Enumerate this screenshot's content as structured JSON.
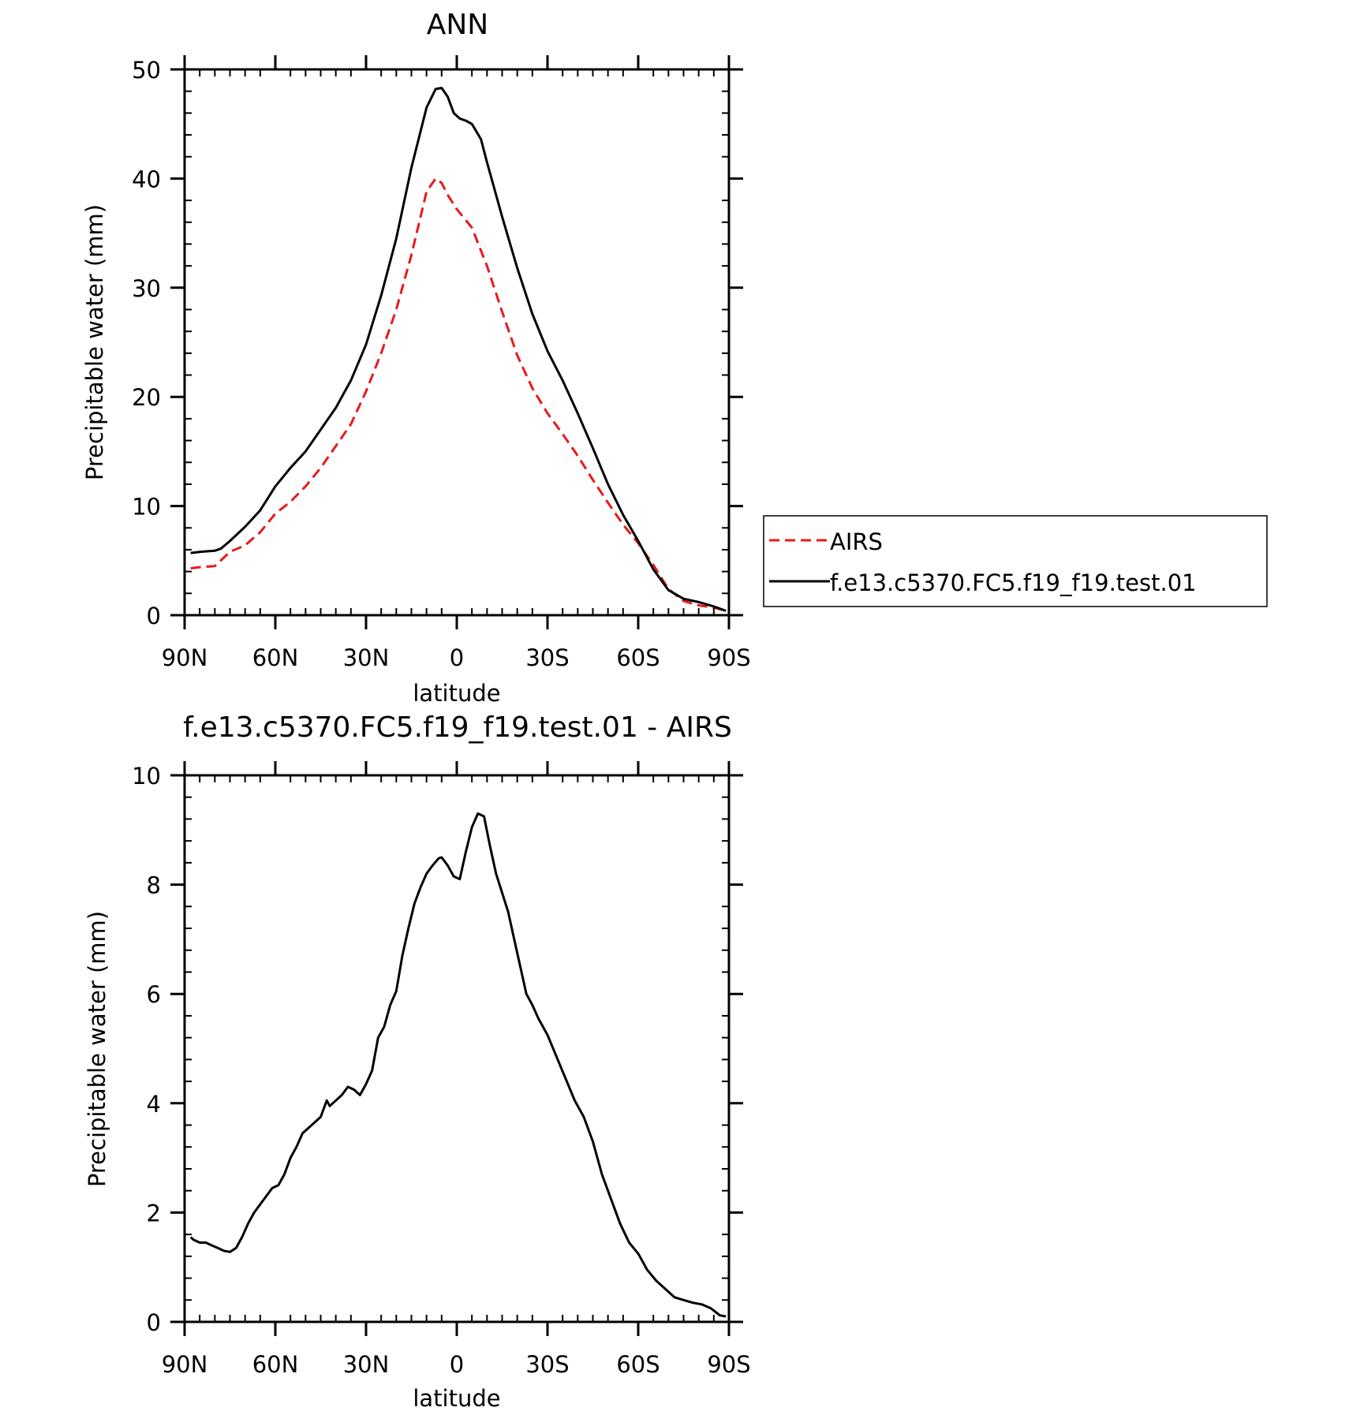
{
  "chart_data": [
    {
      "type": "line",
      "title": "ANN",
      "xlabel": "latitude",
      "ylabel": "Precipitable water (mm)",
      "xlim": [
        -90,
        90
      ],
      "ylim": [
        0,
        50
      ],
      "xticks": [
        -90,
        -60,
        -30,
        0,
        30,
        60,
        90
      ],
      "xtick_labels": [
        "90N",
        "60N",
        "30N",
        "0",
        "30S",
        "60S",
        "90S"
      ],
      "yticks": [
        0,
        10,
        20,
        30,
        40,
        50
      ],
      "ytick_labels": [
        "0",
        "10",
        "20",
        "30",
        "40",
        "50"
      ],
      "legend_position": "right",
      "grid": false,
      "series": [
        {
          "name": "AIRS",
          "color": "#e8191c",
          "dash": "dashed",
          "x": [
            -88,
            -85,
            -80,
            -75,
            -70,
            -65,
            -60,
            -55,
            -50,
            -45,
            -40,
            -35,
            -30,
            -25,
            -20,
            -15,
            -10,
            -7,
            -5,
            -3,
            0,
            5,
            10,
            15,
            20,
            25,
            30,
            35,
            40,
            45,
            50,
            55,
            60,
            65,
            70,
            75,
            80,
            85,
            89
          ],
          "y": [
            4.3,
            4.4,
            4.5,
            5.8,
            6.4,
            7.6,
            9.3,
            10.4,
            11.8,
            13.5,
            15.5,
            17.5,
            20.5,
            24.0,
            28.0,
            33.0,
            38.8,
            40.0,
            39.6,
            38.5,
            37.2,
            35.5,
            32.0,
            27.8,
            23.8,
            20.8,
            18.5,
            16.6,
            14.6,
            12.4,
            10.3,
            8.3,
            6.6,
            4.6,
            2.4,
            1.3,
            0.9,
            0.7,
            0.4
          ]
        },
        {
          "name": "f.e13.c5370.FC5.f19_f19.test.01",
          "color": "#000000",
          "dash": "solid",
          "x": [
            -88,
            -85,
            -80,
            -78,
            -75,
            -70,
            -65,
            -60,
            -55,
            -50,
            -45,
            -40,
            -35,
            -30,
            -25,
            -20,
            -15,
            -10,
            -7,
            -5,
            -3,
            -1,
            1,
            3,
            5,
            8,
            10,
            15,
            20,
            25,
            30,
            35,
            40,
            45,
            50,
            55,
            60,
            65,
            70,
            75,
            80,
            85,
            89
          ],
          "y": [
            5.7,
            5.8,
            5.9,
            6.1,
            6.8,
            8.1,
            9.6,
            11.8,
            13.5,
            15.0,
            17.0,
            19.0,
            21.5,
            24.8,
            29.3,
            34.5,
            41.0,
            46.5,
            48.2,
            48.3,
            47.5,
            46.0,
            45.5,
            45.3,
            45.0,
            43.6,
            41.5,
            36.5,
            31.8,
            27.6,
            24.2,
            21.5,
            18.5,
            15.3,
            12.0,
            9.2,
            6.8,
            4.2,
            2.3,
            1.5,
            1.2,
            0.8,
            0.4
          ]
        }
      ]
    },
    {
      "type": "line",
      "title": "f.e13.c5370.FC5.f19_f19.test.01 - AIRS",
      "xlabel": "latitude",
      "ylabel": "Precipitable water (mm)",
      "xlim": [
        -90,
        90
      ],
      "ylim": [
        0,
        10
      ],
      "xticks": [
        -90,
        -60,
        -30,
        0,
        30,
        60,
        90
      ],
      "xtick_labels": [
        "90N",
        "60N",
        "30N",
        "0",
        "30S",
        "60S",
        "90S"
      ],
      "yticks": [
        0,
        2,
        4,
        6,
        8,
        10
      ],
      "ytick_labels": [
        "0",
        "2",
        "4",
        "6",
        "8",
        "10"
      ],
      "grid": false,
      "series": [
        {
          "color": "#000000",
          "dash": "solid",
          "x": [
            -88,
            -87,
            -85,
            -83,
            -81,
            -79,
            -77,
            -75,
            -73,
            -71,
            -69,
            -67,
            -65,
            -63,
            -61,
            -59,
            -57,
            -55,
            -53,
            -51,
            -49,
            -47,
            -45,
            -43,
            -42,
            -40,
            -38,
            -36,
            -34,
            -32,
            -30,
            -28,
            -26,
            -24,
            -22,
            -20,
            -18,
            -16,
            -14,
            -12,
            -10,
            -8,
            -6,
            -5,
            -3,
            -1,
            1,
            3,
            5,
            7,
            9,
            11,
            13,
            15,
            17,
            19,
            21,
            23,
            25,
            27,
            30,
            33,
            36,
            39,
            42,
            45,
            48,
            51,
            54,
            57,
            60,
            63,
            66,
            69,
            72,
            75,
            78,
            81,
            84,
            87,
            89
          ],
          "y": [
            1.55,
            1.5,
            1.45,
            1.45,
            1.4,
            1.35,
            1.3,
            1.28,
            1.35,
            1.55,
            1.8,
            2.0,
            2.15,
            2.3,
            2.45,
            2.5,
            2.7,
            3.0,
            3.2,
            3.45,
            3.55,
            3.65,
            3.75,
            4.05,
            3.95,
            4.05,
            4.15,
            4.3,
            4.25,
            4.15,
            4.35,
            4.6,
            5.2,
            5.4,
            5.8,
            6.05,
            6.7,
            7.2,
            7.65,
            7.95,
            8.2,
            8.35,
            8.48,
            8.5,
            8.35,
            8.15,
            8.1,
            8.6,
            9.05,
            9.3,
            9.25,
            8.7,
            8.2,
            7.85,
            7.5,
            7.0,
            6.5,
            6.0,
            5.8,
            5.55,
            5.25,
            4.85,
            4.45,
            4.05,
            3.75,
            3.3,
            2.7,
            2.25,
            1.8,
            1.45,
            1.25,
            0.95,
            0.75,
            0.6,
            0.45,
            0.4,
            0.35,
            0.32,
            0.25,
            0.12,
            0.1
          ]
        }
      ]
    }
  ]
}
